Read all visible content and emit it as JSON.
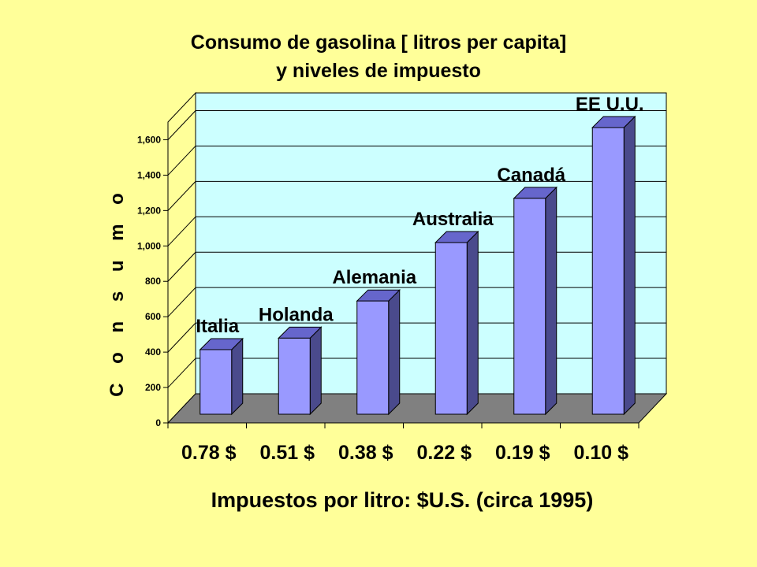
{
  "chart_data": {
    "type": "bar",
    "title_lines": [
      "Consumo de gasolina [ litros per capita]",
      "y niveles de impuesto"
    ],
    "xlabel": "Impuestos por litro: $U.S. (circa 1995)",
    "ylabel": "C o n s u m o",
    "categories": [
      "0.78  $",
      "0.51  $",
      "0.38  $",
      "0.22  $",
      "0.19  $",
      "0.10  $"
    ],
    "series": [
      {
        "values": [
          365,
          430,
          640,
          970,
          1220,
          1620
        ]
      }
    ],
    "data_labels": [
      "Italia",
      "Holanda",
      "Alemania",
      "Australia",
      "Canadá",
      "EE U.U."
    ],
    "ylim": [
      0,
      1700
    ],
    "yticks": [
      0,
      200,
      400,
      600,
      800,
      1000,
      1200,
      1400,
      1600
    ],
    "ytick_labels": [
      "0",
      "200",
      "400",
      "600",
      "800",
      "1,000",
      "1,200",
      "1,400",
      "1,600"
    ],
    "grid": true,
    "colors": {
      "background": "#ffff99",
      "wall": "#ccffff",
      "floor": "#808080",
      "bar_front": "#9999ff",
      "bar_top": "#6666cc",
      "bar_side": "#4a4a8c"
    }
  }
}
